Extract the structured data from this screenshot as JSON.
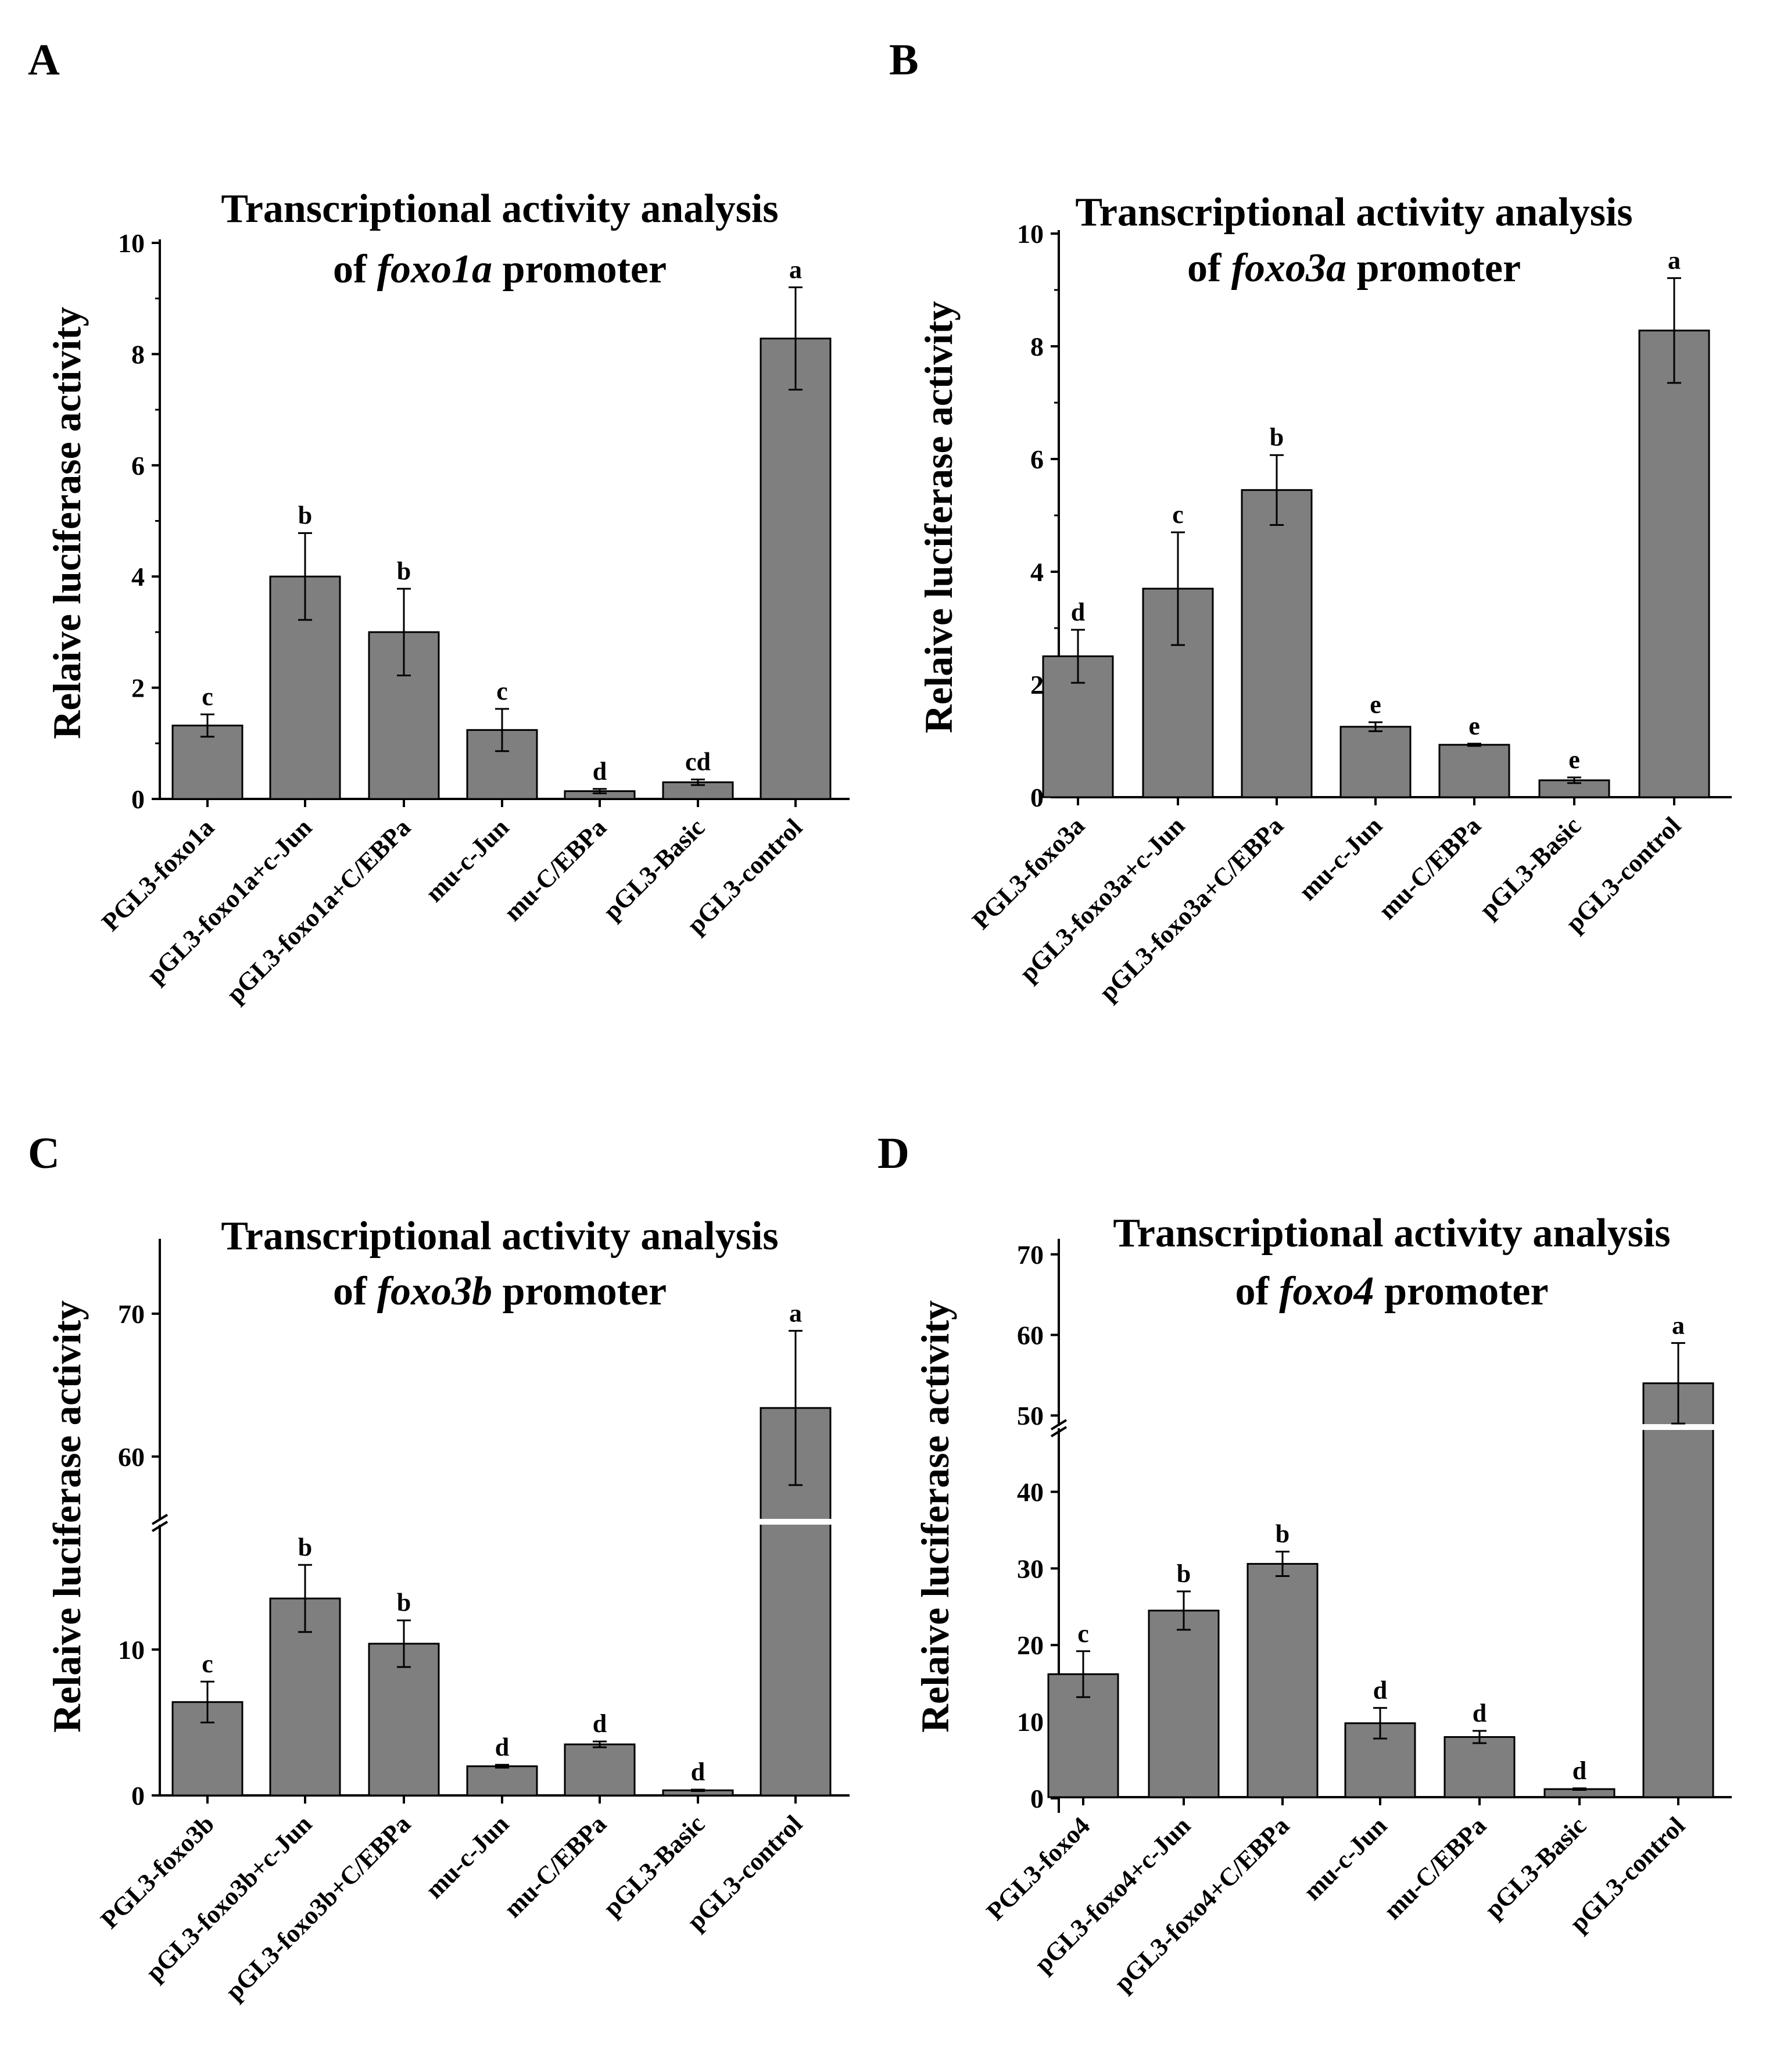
{
  "chart_data": [
    {
      "type": "bar",
      "panel": "A",
      "title_pre": "Transcriptional activity analysis",
      "title_of": "of",
      "title_gene": "foxo1a",
      "title_post": "promoter",
      "ylabel": "Relaive luciferase activity",
      "xlabel": "",
      "categories": [
        "PGL3-foxo1a",
        "pGL3-foxo1a+c-Jun",
        "pGL3-foxo1a+C/EBPa",
        "mu-c-Jun",
        "mu-C/EBPa",
        "pGL3-Basic",
        "pGL3-control"
      ],
      "values": [
        1.32,
        4.0,
        3.0,
        1.24,
        0.14,
        0.3,
        8.28
      ],
      "errors": [
        0.2,
        0.78,
        0.78,
        0.38,
        0.04,
        0.05,
        0.92
      ],
      "labels": [
        "c",
        "b",
        "b",
        "c",
        "d",
        "cd",
        "a"
      ],
      "ylim": [
        0,
        10
      ],
      "yticks": [
        0,
        2,
        4,
        6,
        8,
        10
      ],
      "bar_color": "#7f7f7f"
    },
    {
      "type": "bar",
      "panel": "B",
      "title_pre": "Transcriptional activity analysis",
      "title_of": "of",
      "title_gene": "foxo3a",
      "title_post": "promoter",
      "ylabel": "Relaive luciferase activity",
      "xlabel": "",
      "categories": [
        "PGL3-foxo3a",
        "pGL3-foxo3a+c-Jun",
        "pGL3-foxo3a+C/EBPa",
        "mu-c-Jun",
        "mu-C/EBPa",
        "pGL3-Basic",
        "pGL3-control"
      ],
      "values": [
        2.5,
        3.7,
        5.45,
        1.25,
        0.93,
        0.3,
        8.28
      ],
      "errors": [
        0.47,
        1.0,
        0.62,
        0.08,
        0.02,
        0.05,
        0.93
      ],
      "labels": [
        "d",
        "c",
        "b",
        "e",
        "e",
        "e",
        "a"
      ],
      "ylim": [
        0,
        10
      ],
      "yticks": [
        0,
        2,
        4,
        6,
        8,
        10
      ],
      "bar_color": "#7f7f7f"
    },
    {
      "type": "bar",
      "panel": "C",
      "title_pre": "Transcriptional activity analysis",
      "title_of": "of",
      "title_gene": "foxo3b",
      "title_post": "promoter",
      "ylabel": "Relaive luciferase activity",
      "xlabel": "",
      "categories": [
        "PGL3-foxo3b",
        "pGL3-foxo3b+c-Jun",
        "pGL3-foxo3b+C/EBPa",
        "mu-c-Jun",
        "mu-C/EBPa",
        "pGL3-Basic",
        "pGL3-control"
      ],
      "values": [
        6.4,
        13.5,
        10.4,
        2.0,
        3.5,
        0.35,
        63.4
      ],
      "errors": [
        1.4,
        2.3,
        1.6,
        0.1,
        0.2,
        0.05,
        5.4
      ],
      "labels": [
        "c",
        "b",
        "b",
        "d",
        "d",
        "d",
        "a"
      ],
      "axis_break": {
        "lower": [
          0,
          18.4
        ],
        "upper": [
          55.8,
          75
        ]
      },
      "yticks": [
        0,
        10,
        60,
        70
      ],
      "bar_color": "#7f7f7f"
    },
    {
      "type": "bar",
      "panel": "D",
      "title_pre": "Transcriptional activity analysis",
      "title_of": "of",
      "title_gene": "foxo4",
      "title_post": "promoter",
      "ylabel": "Relaive luciferase activity",
      "xlabel": "",
      "categories": [
        "PGL3-foxo4",
        "pGL3-foxo4+c-Jun",
        "pGL3-foxo4+C/EBPa",
        "mu-c-Jun",
        "mu-C/EBPa",
        "pGL3-Basic",
        "pGL3-control"
      ],
      "values": [
        16.2,
        24.5,
        30.6,
        9.8,
        8.0,
        1.2,
        54.0
      ],
      "errors": [
        3.0,
        2.5,
        1.6,
        2.0,
        0.8,
        0.1,
        5.0
      ],
      "labels": [
        "c",
        "b",
        "b",
        "d",
        "d",
        "d",
        "a"
      ],
      "axis_break": {
        "lower": [
          -1.9,
          48.0
        ],
        "upper": [
          49.0,
          71.5
        ]
      },
      "yticks": [
        0,
        10,
        20,
        30,
        40,
        50,
        60,
        70
      ],
      "bar_color": "#7f7f7f"
    }
  ]
}
